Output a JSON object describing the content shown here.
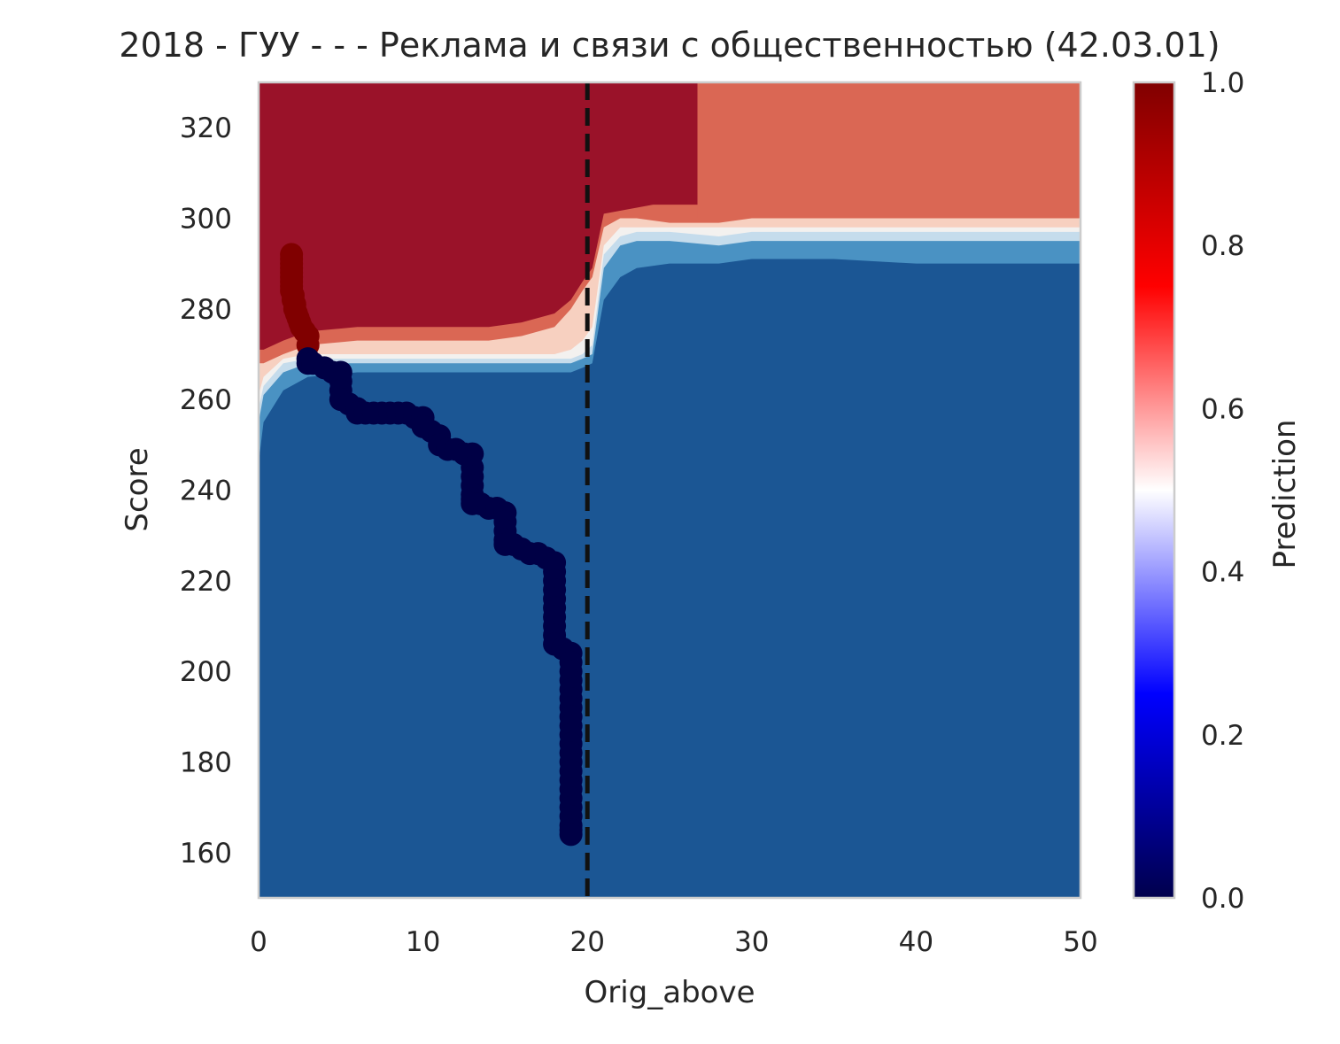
{
  "chart_data": {
    "type": "heatmap",
    "title": "2018 - ГУУ - - - Реклама и связи с общественностью (42.03.01)",
    "xlabel": "Orig_above",
    "ylabel": "Score",
    "xlim": [
      0,
      50
    ],
    "ylim": [
      150,
      330
    ],
    "x_ticks": [
      0,
      10,
      20,
      30,
      40,
      50
    ],
    "y_ticks": [
      160,
      180,
      200,
      220,
      240,
      260,
      280,
      300,
      320
    ],
    "grid": false,
    "colorbar": {
      "label": "Prediction",
      "colormap": "seismic",
      "range": [
        0.0,
        1.0
      ],
      "ticks": [
        "0.0",
        "0.2",
        "0.4",
        "0.6",
        "0.8",
        "1.0"
      ]
    },
    "threshold_line": {
      "x": 20,
      "style": "dashed",
      "color": "#111111"
    },
    "region_colors": {
      "high": "#9a1229",
      "upper_right": "#da6754",
      "band_mid": "#ec9a82",
      "band_light": "#f7d0c0",
      "band_white": "#f3f1ef",
      "band_pale_blue": "#c5dcec",
      "band_blue": "#4a92c3",
      "low": "#1b5694"
    },
    "decision_boundaries": {
      "x": [
        0,
        0.3,
        1.5,
        3,
        6,
        10,
        14,
        16,
        18,
        19,
        19.7,
        20.3,
        21,
        22,
        23,
        25,
        28,
        30,
        35,
        40,
        45,
        50
      ],
      "top": [
        268,
        268,
        270,
        272,
        273,
        273,
        273,
        274,
        276,
        280,
        284,
        287,
        298,
        300,
        300,
        299,
        299,
        300,
        300,
        300,
        300,
        300
      ],
      "b1": [
        261,
        265,
        269,
        270,
        270,
        270,
        270,
        270,
        270,
        271,
        273,
        276,
        294,
        298,
        298,
        298,
        298,
        298,
        298,
        298,
        298,
        298
      ],
      "b2": [
        258,
        263,
        268,
        269,
        269,
        269,
        269,
        269,
        269,
        269,
        270,
        272,
        292,
        296,
        297,
        297,
        296,
        297,
        297,
        297,
        297,
        297
      ],
      "b3": [
        255,
        261,
        266,
        268,
        268,
        268,
        268,
        268,
        268,
        268,
        269,
        270,
        289,
        294,
        295,
        295,
        294,
        295,
        295,
        295,
        295,
        295
      ],
      "b4": [
        246,
        255,
        262,
        265,
        266,
        266,
        266,
        266,
        266,
        266,
        267,
        268,
        282,
        287,
        289,
        290,
        290,
        291,
        291,
        290,
        290,
        290
      ],
      "upper_right_start_x": 26.7,
      "upper_right_bottom": 300
    },
    "series": [
      {
        "color": "#800000",
        "x": [
          2.0,
          2.0,
          2.0,
          2.0,
          2.0,
          2.0,
          2.0,
          2.0,
          2.0,
          2.1,
          2.1,
          2.2,
          2.2,
          2.3,
          2.4,
          2.5,
          2.6,
          2.8,
          3.0,
          3.0
        ],
        "y": [
          292,
          291,
          290,
          289,
          288,
          287,
          286,
          285,
          284,
          283,
          282,
          281,
          280,
          279,
          278,
          277,
          276,
          275,
          274,
          272
        ]
      },
      {
        "color": "#000045",
        "x": [
          3.0,
          3.0,
          3.3,
          4.0,
          4.5,
          5.0,
          5.0,
          5.0,
          5.0,
          5.5,
          6.0,
          6.0,
          6.5,
          7.0,
          7.5,
          8.0,
          8.5,
          9.0,
          9.5,
          10.0,
          10.0,
          10.5,
          11.0,
          11.0,
          11.5,
          12.0,
          12.5,
          13.0,
          13.0,
          13.0,
          13.0,
          13.0,
          13.0,
          13.0,
          13.5,
          14.0,
          14.5,
          15.0,
          15.0,
          15.0,
          15.0,
          15.0,
          15.5,
          16.0,
          16.5,
          17.0,
          17.5,
          18.0,
          18.0,
          18.0,
          18.0,
          18.0,
          18.0,
          18.0,
          18.0,
          18.0,
          18.0,
          18.5,
          19.0,
          19.0,
          19.0,
          19.0,
          19.0,
          19.0,
          19.0,
          19.0,
          19.0,
          19.0,
          19.0,
          19.0,
          19.0,
          19.0,
          19.0,
          19.0,
          19.0,
          19.0,
          19.0,
          19.0,
          19.0,
          19.0
        ],
        "y": [
          269,
          268,
          268,
          267,
          266,
          266,
          264,
          262,
          260,
          259,
          258,
          257,
          257,
          257,
          257,
          257,
          257,
          257,
          256,
          256,
          254,
          253,
          252,
          250,
          249,
          249,
          248,
          248,
          245,
          243,
          241,
          239,
          238,
          237,
          237,
          236,
          236,
          235,
          233,
          231,
          229,
          228,
          228,
          227,
          226,
          226,
          225,
          224,
          222,
          220,
          218,
          216,
          214,
          212,
          210,
          208,
          206,
          205,
          204,
          202,
          200,
          198,
          196,
          194,
          192,
          190,
          188,
          186,
          184,
          182,
          180,
          178,
          176,
          174,
          172,
          170,
          168,
          166,
          165,
          164
        ]
      }
    ]
  }
}
